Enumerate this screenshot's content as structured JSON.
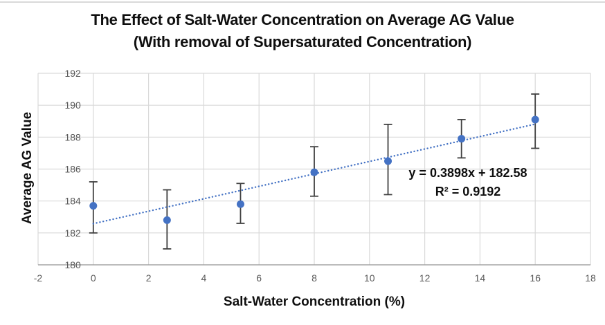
{
  "chart_data": {
    "type": "scatter",
    "title": "The Effect of Salt-Water Concentration on Average AG Value",
    "subtitle": "(With removal of Supersaturated Concentration)",
    "xlabel": "Salt-Water Concentration (%)",
    "ylabel": "Average AG Value",
    "xlim": [
      -2,
      18
    ],
    "ylim": [
      180,
      192
    ],
    "x_ticks": [
      -2,
      0,
      2,
      4,
      6,
      8,
      10,
      12,
      14,
      16,
      18
    ],
    "y_ticks": [
      180,
      182,
      184,
      186,
      188,
      190,
      192
    ],
    "grid": true,
    "legend": false,
    "points": [
      {
        "x": 0,
        "y": 183.7,
        "err_low": 182.0,
        "err_high": 185.2
      },
      {
        "x": 2.67,
        "y": 182.8,
        "err_low": 181.0,
        "err_high": 184.7
      },
      {
        "x": 5.33,
        "y": 183.8,
        "err_low": 182.6,
        "err_high": 185.1
      },
      {
        "x": 8,
        "y": 185.8,
        "err_low": 184.3,
        "err_high": 187.4
      },
      {
        "x": 10.67,
        "y": 186.5,
        "err_low": 184.4,
        "err_high": 188.8
      },
      {
        "x": 13.33,
        "y": 187.9,
        "err_low": 186.7,
        "err_high": 189.1
      },
      {
        "x": 16,
        "y": 189.1,
        "err_low": 187.3,
        "err_high": 190.7
      }
    ],
    "trendline": {
      "type": "linear",
      "style": "dotted",
      "slope": 0.3898,
      "intercept": 182.58,
      "r_squared": 0.9192,
      "x_start": 0,
      "x_end": 16,
      "equation_label": "y = 0.3898x + 182.58",
      "r_squared_label": "R² = 0.9192"
    },
    "colors": {
      "marker": "#4472C4",
      "trendline": "#4472C4",
      "error_bar": "#404040",
      "gridline": "#D9D9D9",
      "axis_line": "#A6A6A6",
      "tick_label": "#595959",
      "text": "#0F0F0F",
      "top_border": "#D9D9D9"
    }
  }
}
